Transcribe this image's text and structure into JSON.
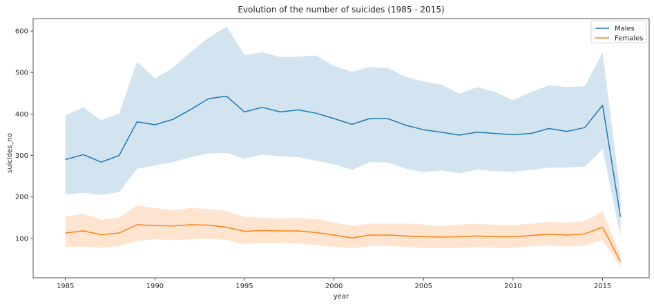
{
  "chart_data": {
    "type": "line",
    "title": "Evolution of the number of suicides (1985 - 2015)",
    "xlabel": "year",
    "ylabel": "suicides_no",
    "xlim": [
      1983.2,
      2017.6
    ],
    "ylim": [
      5,
      630
    ],
    "xticks": [
      1985,
      1990,
      1995,
      2000,
      2005,
      2010,
      2015
    ],
    "yticks": [
      100,
      200,
      300,
      400,
      500,
      600
    ],
    "legend_position": "top-right",
    "x": [
      1985,
      1986,
      1987,
      1988,
      1989,
      1990,
      1991,
      1992,
      1993,
      1994,
      1995,
      1996,
      1997,
      1998,
      1999,
      2000,
      2001,
      2002,
      2003,
      2004,
      2005,
      2006,
      2007,
      2008,
      2009,
      2010,
      2011,
      2012,
      2013,
      2014,
      2015,
      2016
    ],
    "series": [
      {
        "name": "Males",
        "color": "#1f77b4",
        "band_color": "#1f77b4",
        "values": [
          290,
          302,
          284,
          300,
          381,
          374,
          387,
          411,
          437,
          443,
          405,
          416,
          405,
          410,
          402,
          389,
          375,
          389,
          389,
          373,
          362,
          356,
          349,
          356,
          353,
          350,
          353,
          365,
          358,
          367,
          421,
          152
        ],
        "ci_lower": [
          206,
          210,
          205,
          212,
          268,
          276,
          284,
          296,
          305,
          306,
          292,
          302,
          298,
          296,
          287,
          279,
          265,
          284,
          283,
          268,
          260,
          264,
          257,
          266,
          262,
          261,
          265,
          271,
          271,
          273,
          315,
          105
        ],
        "ci_upper": [
          397,
          416,
          385,
          401,
          526,
          486,
          511,
          550,
          584,
          611,
          542,
          549,
          537,
          538,
          541,
          516,
          502,
          513,
          511,
          490,
          478,
          471,
          449,
          465,
          453,
          433,
          453,
          469,
          465,
          467,
          548,
          205
        ]
      },
      {
        "name": "Females",
        "color": "#ff7f0e",
        "band_color": "#ff7f0e",
        "values": [
          113,
          118,
          109,
          113,
          133,
          131,
          130,
          133,
          132,
          127,
          117,
          119,
          118,
          118,
          114,
          108,
          101,
          108,
          108,
          106,
          104,
          103,
          104,
          106,
          104,
          104,
          107,
          110,
          108,
          111,
          127,
          44
        ],
        "ci_lower": [
          80,
          80,
          77,
          81,
          94,
          98,
          96,
          98,
          99,
          96,
          86,
          89,
          89,
          88,
          84,
          80,
          76,
          82,
          82,
          79,
          77,
          77,
          77,
          79,
          77,
          77,
          81,
          83,
          80,
          83,
          96,
          31
        ],
        "ci_upper": [
          153,
          160,
          145,
          150,
          180,
          173,
          168,
          173,
          171,
          166,
          152,
          150,
          148,
          149,
          147,
          139,
          130,
          136,
          136,
          136,
          134,
          129,
          134,
          135,
          133,
          132,
          136,
          140,
          138,
          142,
          166,
          58
        ]
      }
    ]
  }
}
